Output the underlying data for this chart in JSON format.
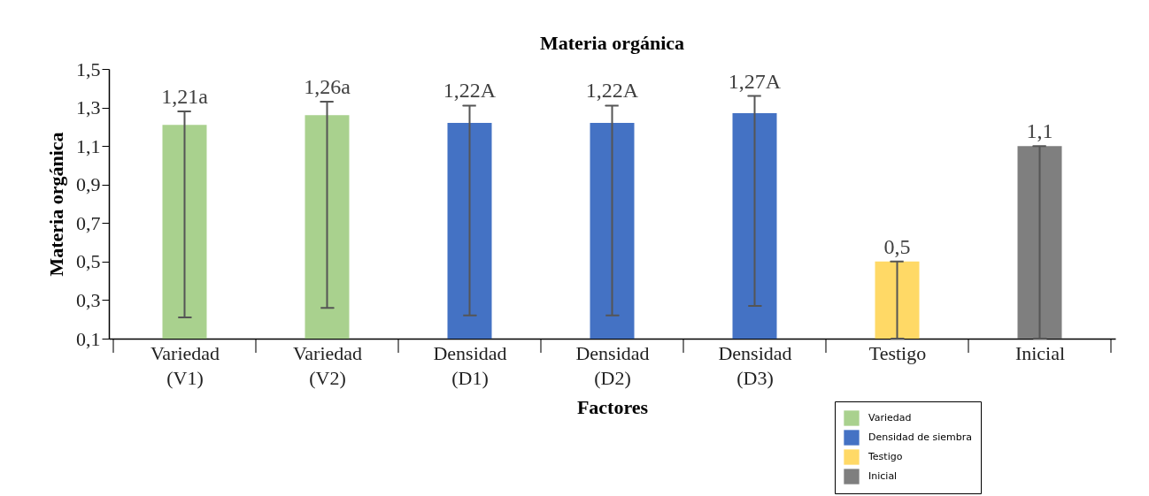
{
  "chart_data": {
    "type": "bar",
    "title": "Materia orgánica",
    "xlabel": "Factores",
    "ylabel": "Materia orgánica",
    "categories": [
      "Variedad (V1)",
      "Variedad (V2)",
      "Densidad (D1)",
      "Densidad (D2)",
      "Densidad (D3)",
      "Testigo",
      "Inicial"
    ],
    "series": [
      {
        "name": "Variedad",
        "color": "#a9d18e",
        "values": [
          1.21,
          1.26,
          null,
          null,
          null,
          null,
          null
        ],
        "errors": [
          [
            0.21,
            1.28
          ],
          [
            0.26,
            1.33
          ],
          null,
          null,
          null,
          null,
          null
        ],
        "value_labels": [
          "1,21a",
          "1,26a",
          null,
          null,
          null,
          null,
          null
        ]
      },
      {
        "name": "Densidad de siembra",
        "color": "#4472c4",
        "values": [
          null,
          null,
          1.22,
          1.22,
          1.27,
          null,
          null
        ],
        "errors": [
          null,
          null,
          [
            0.22,
            1.31
          ],
          [
            0.22,
            1.31
          ],
          [
            0.27,
            1.36
          ],
          null,
          null
        ],
        "value_labels": [
          null,
          null,
          "1,22A",
          "1,22A",
          "1,27A",
          null,
          null
        ]
      },
      {
        "name": "Testigo",
        "color": "#ffd966",
        "values": [
          null,
          null,
          null,
          null,
          null,
          0.5,
          null
        ],
        "errors": [
          null,
          null,
          null,
          null,
          null,
          [
            0.1,
            0.5
          ],
          null
        ],
        "value_labels": [
          null,
          null,
          null,
          null,
          null,
          "0,5",
          null
        ]
      },
      {
        "name": "Inicial",
        "color": "#7f7f7f",
        "values": [
          null,
          null,
          null,
          null,
          null,
          null,
          1.1
        ],
        "errors": [
          null,
          null,
          null,
          null,
          null,
          null,
          [
            0.1,
            1.1
          ]
        ],
        "value_labels": [
          null,
          null,
          null,
          null,
          null,
          null,
          "1,1"
        ]
      }
    ],
    "ylim": [
      0.1,
      1.5
    ],
    "yticks": [
      {
        "value": 0.1,
        "label": "0,1"
      },
      {
        "value": 0.3,
        "label": "0,3"
      },
      {
        "value": 0.5,
        "label": "0,5"
      },
      {
        "value": 0.7,
        "label": "0,7"
      },
      {
        "value": 0.9,
        "label": "0,9"
      },
      {
        "value": 1.1,
        "label": "1,1"
      },
      {
        "value": 1.3,
        "label": "1,3"
      },
      {
        "value": 1.5,
        "label": "1,5"
      }
    ],
    "grid": false,
    "legend": "bottom right"
  }
}
